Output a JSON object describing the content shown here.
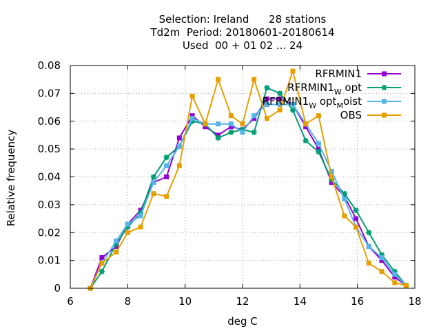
{
  "chart_data": {
    "type": "line",
    "title_lines": [
      "Selection: Ireland      28 stations",
      "Td2m  Period: 20180601-20180614",
      "Used  00 + 01 02 ... 24"
    ],
    "xlabel": "deg C",
    "ylabel": "Relative frequency",
    "xlim": [
      6,
      18
    ],
    "ylim": [
      0,
      0.08
    ],
    "xticks": [
      6,
      8,
      10,
      12,
      14,
      16,
      18
    ],
    "yticks": [
      0,
      0.01,
      0.02,
      0.03,
      0.04,
      0.05,
      0.06,
      0.07,
      0.08
    ],
    "ytick_labels": [
      "0",
      "0.01",
      "0.02",
      "0.03",
      "0.04",
      "0.05",
      "0.06",
      "0.07",
      "0.08"
    ],
    "grid": true,
    "legend_position": "top-right",
    "series": [
      {
        "name": "RFRMIN1",
        "color": "#9400d3",
        "x": [
          6.7,
          7.1,
          7.6,
          8.0,
          8.45,
          8.9,
          9.35,
          9.8,
          10.25,
          10.7,
          11.15,
          11.6,
          12.0,
          12.4,
          12.85,
          13.3,
          13.75,
          14.2,
          14.65,
          15.1,
          15.55,
          15.95,
          16.4,
          16.85,
          17.3,
          17.7
        ],
        "y": [
          0.0,
          0.011,
          0.015,
          0.023,
          0.028,
          0.038,
          0.04,
          0.054,
          0.062,
          0.058,
          0.055,
          0.058,
          0.057,
          0.061,
          0.068,
          0.068,
          0.066,
          0.058,
          0.05,
          0.038,
          0.033,
          0.025,
          0.015,
          0.01,
          0.004,
          0.001
        ]
      },
      {
        "name": "RFRMIN1_W opt",
        "name_parts": [
          "RFRMIN1",
          "W",
          " opt"
        ],
        "color": "#009e73",
        "x": [
          6.7,
          7.1,
          7.6,
          8.0,
          8.45,
          8.9,
          9.35,
          9.8,
          10.25,
          10.7,
          11.15,
          11.6,
          12.0,
          12.4,
          12.85,
          13.3,
          13.75,
          14.2,
          14.65,
          15.1,
          15.55,
          15.95,
          16.4,
          16.85,
          17.3,
          17.7
        ],
        "y": [
          0.0,
          0.006,
          0.016,
          0.022,
          0.027,
          0.04,
          0.047,
          0.051,
          0.06,
          0.059,
          0.054,
          0.056,
          0.057,
          0.056,
          0.072,
          0.07,
          0.064,
          0.053,
          0.049,
          0.039,
          0.034,
          0.028,
          0.02,
          0.012,
          0.006,
          0.001
        ]
      },
      {
        "name": "RFRMIN1_W opt_M oist",
        "name_parts": [
          "RFRMIN1",
          "W",
          " opt",
          "M",
          "oist"
        ],
        "color": "#56b4e9",
        "x": [
          6.7,
          7.1,
          7.6,
          8.0,
          8.45,
          8.9,
          9.35,
          9.8,
          10.25,
          10.7,
          11.15,
          11.6,
          12.0,
          12.4,
          12.85,
          13.3,
          13.75,
          14.2,
          14.65,
          15.1,
          15.55,
          15.95,
          16.4,
          16.85,
          17.3,
          17.7
        ],
        "y": [
          0.0,
          0.009,
          0.017,
          0.023,
          0.026,
          0.038,
          0.044,
          0.051,
          0.061,
          0.059,
          0.059,
          0.059,
          0.056,
          0.062,
          0.066,
          0.066,
          0.066,
          0.059,
          0.052,
          0.042,
          0.032,
          0.022,
          0.015,
          0.011,
          0.005,
          0.001
        ]
      },
      {
        "name": "OBS",
        "color": "#e69f00",
        "x": [
          6.7,
          7.1,
          7.6,
          8.0,
          8.45,
          8.9,
          9.35,
          9.8,
          10.25,
          10.7,
          11.15,
          11.6,
          12.0,
          12.4,
          12.85,
          13.3,
          13.75,
          14.2,
          14.65,
          15.1,
          15.55,
          15.95,
          16.4,
          16.85,
          17.3,
          17.7
        ],
        "y": [
          0.0,
          0.009,
          0.013,
          0.02,
          0.022,
          0.034,
          0.033,
          0.044,
          0.069,
          0.059,
          0.075,
          0.062,
          0.059,
          0.075,
          0.061,
          0.064,
          0.078,
          0.059,
          0.062,
          0.04,
          0.026,
          0.022,
          0.009,
          0.006,
          0.002,
          0.001
        ]
      }
    ]
  }
}
